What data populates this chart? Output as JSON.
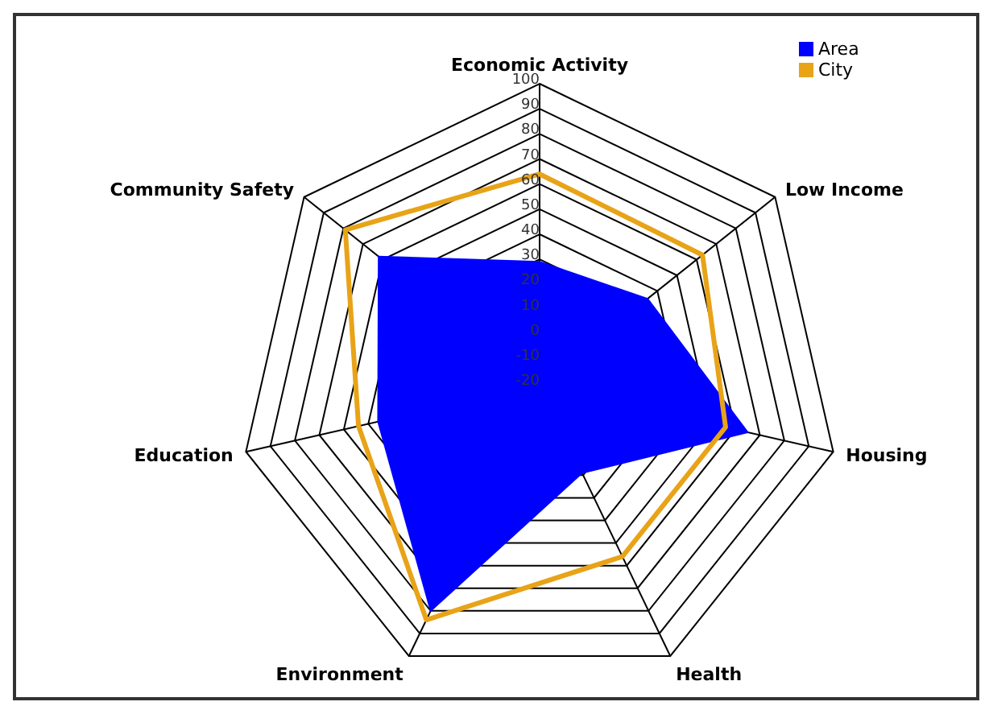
{
  "chart_data": {
    "type": "radar",
    "categories": [
      "Economic Activity",
      "Low Income",
      "Housing",
      "Health",
      "Environment",
      "Education",
      "Community Safety"
    ],
    "series": [
      {
        "name": "Area",
        "color": "#0000ff",
        "values": [
          29,
          35,
          65,
          19,
          80,
          46,
          62
        ]
      },
      {
        "name": "City",
        "color": "#e8a317",
        "values": [
          64,
          63,
          56,
          56,
          84,
          54,
          79
        ]
      }
    ],
    "ylim": [
      -20,
      100
    ],
    "yticks": [
      -20,
      -10,
      0,
      10,
      20,
      30,
      40,
      50,
      60,
      70,
      80,
      90,
      100
    ],
    "grid": true,
    "legend": "top right"
  }
}
